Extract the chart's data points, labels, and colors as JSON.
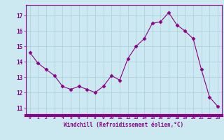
{
  "x": [
    0,
    1,
    2,
    3,
    4,
    5,
    6,
    7,
    8,
    9,
    10,
    11,
    12,
    13,
    14,
    15,
    16,
    17,
    18,
    19,
    20,
    21,
    22,
    23
  ],
  "y": [
    14.6,
    13.9,
    13.5,
    13.1,
    12.4,
    12.2,
    12.4,
    12.2,
    12.0,
    12.4,
    13.1,
    12.8,
    14.2,
    15.0,
    15.5,
    16.5,
    16.6,
    17.2,
    16.4,
    16.0,
    15.5,
    13.5,
    11.7,
    11.1
  ],
  "line_color": "#880088",
  "marker": "D",
  "markersize": 2.5,
  "xlabel": "Windchill (Refroidissement éolien,°C)",
  "xlabel_color": "#880088",
  "ylabel_ticks": [
    11,
    12,
    13,
    14,
    15,
    16,
    17
  ],
  "xtick_labels": [
    "0",
    "1",
    "2",
    "3",
    "4",
    "5",
    "6",
    "7",
    "8",
    "9",
    "10",
    "11",
    "12",
    "13",
    "14",
    "15",
    "16",
    "17",
    "18",
    "19",
    "20",
    "21",
    "22",
    "23"
  ],
  "ylim": [
    10.5,
    17.7
  ],
  "xlim": [
    -0.5,
    23.5
  ],
  "bg_color": "#cce8f0",
  "plot_bg_color": "#cce8f0",
  "grid_color": "#aaccd8",
  "tick_color": "#880088",
  "spine_color": "#880088",
  "xaxis_bar_color": "#880088"
}
